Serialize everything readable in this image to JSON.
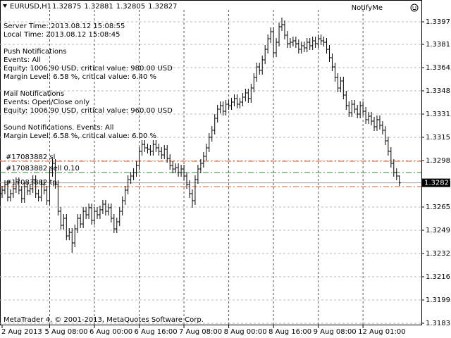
{
  "chart_data": {
    "type": "ohlc",
    "symbol": "EURUSD,H1",
    "indicator": "NotifyMe",
    "copyright": "MetaTrader 4, © 2001-2013, MetaQuotes Software Corp.",
    "info": [
      [
        "Server Time: 2013.08.12 15:08:55",
        "Local Time: 2013.08.12 15:08:45"
      ],
      [
        "Push Notifications",
        "Events: All",
        "Equity: 1006.90 USD, critical value: 980.00 USD",
        "Margin Level: 6.58 %, critical value: 6.40 %"
      ],
      [
        "Mail Notifications",
        "Events: Open/Close only",
        "Equity: 1006.90 USD, critical value: 960.00 USD"
      ],
      [
        "Sound Notifications. Events: All",
        "Margin Level: 6.58 %, critical value: 6.00 %"
      ]
    ],
    "levels": [
      {
        "label": "#17083882 sl",
        "value": 1.3298,
        "color": "#e0601a"
      },
      {
        "label": "#17083882 sell 0.10",
        "value": 1.329,
        "color": "#2e8b3a"
      },
      {
        "label": "#17083882 tp",
        "value": 1.328,
        "color": "#e0601a"
      }
    ],
    "color": "#000000",
    "grid": true,
    "ylim": [
      1.31815,
      1.34055
    ],
    "yticks": [
      1.3397,
      1.3381,
      1.33645,
      1.3348,
      1.33315,
      1.3315,
      1.32985,
      1.32655,
      1.3249,
      1.32325,
      1.3216,
      1.31995,
      1.3183
    ],
    "categories": [
      "2 Aug 2013",
      null,
      null,
      null,
      null,
      null,
      null,
      null,
      null,
      null,
      null,
      null,
      null,
      null,
      null,
      null,
      null,
      "5 Aug 08:00",
      null,
      null,
      null,
      null,
      null,
      null,
      null,
      null,
      null,
      null,
      null,
      null,
      null,
      null,
      null,
      "6 Aug 00:00",
      null,
      null,
      null,
      null,
      null,
      null,
      null,
      null,
      null,
      null,
      null,
      null,
      null,
      null,
      null,
      "6 Aug 16:00",
      null,
      null,
      null,
      null,
      null,
      null,
      null,
      null,
      null,
      null,
      null,
      null,
      null,
      null,
      null,
      "7 Aug 08:00",
      null,
      null,
      null,
      null,
      null,
      null,
      null,
      null,
      null,
      null,
      null,
      null,
      null,
      null,
      null,
      "8 Aug 00:00",
      null,
      null,
      null,
      null,
      null,
      null,
      null,
      null,
      null,
      null,
      null,
      null,
      null,
      null,
      null,
      "8 Aug 16:00",
      null,
      null,
      null,
      null,
      null,
      null,
      null,
      null,
      null,
      null,
      null,
      null,
      null,
      null,
      null,
      "9 Aug 08:00",
      null,
      null,
      null,
      null,
      null,
      null,
      null,
      null,
      null,
      null,
      null,
      null,
      null,
      null,
      null,
      "12 Aug 01:00",
      null,
      null,
      null,
      null,
      null,
      null,
      null,
      null,
      null,
      null,
      null,
      null,
      null
    ],
    "open": [
      1.3275,
      1.32775,
      1.32815,
      1.32725,
      1.3275,
      1.32785,
      1.32835,
      1.32775,
      1.32715,
      1.328,
      1.3277,
      1.32785,
      1.3285,
      1.3275,
      1.32725,
      1.32815,
      1.32775,
      1.327,
      1.329,
      1.32965,
      1.32815,
      1.32625,
      1.32525,
      1.32575,
      1.3245,
      1.32475,
      1.324,
      1.325,
      1.32575,
      1.32535,
      1.32625,
      1.326,
      1.3265,
      1.3256,
      1.32625,
      1.326,
      1.32635,
      1.32675,
      1.32625,
      1.3265,
      1.32575,
      1.325,
      1.3255,
      1.32625,
      1.327,
      1.32775,
      1.3285,
      1.32875,
      1.329,
      1.3295,
      1.3305,
      1.331,
      1.33075,
      1.33065,
      1.3305,
      1.331,
      1.33075,
      1.3305,
      1.33025,
      1.33065,
      1.33,
      1.3295,
      1.32925,
      1.32935,
      1.329,
      1.32925,
      1.32875,
      1.32815,
      1.3275,
      1.327,
      1.3285,
      1.32925,
      1.32965,
      1.33015,
      1.33075,
      1.3315,
      1.332,
      1.33285,
      1.3335,
      1.33375,
      1.33335,
      1.33385,
      1.33375,
      1.334,
      1.33425,
      1.33385,
      1.334,
      1.33435,
      1.33465,
      1.33425,
      1.335,
      1.33575,
      1.3365,
      1.33625,
      1.337,
      1.33775,
      1.3385,
      1.339,
      1.3375,
      1.33825,
      1.33935,
      1.3395,
      1.33875,
      1.33815,
      1.33825,
      1.33835,
      1.33815,
      1.33775,
      1.338,
      1.33785,
      1.33825,
      1.338,
      1.33835,
      1.33815,
      1.3385,
      1.33835,
      1.33825,
      1.33775,
      1.33715,
      1.3365,
      1.33575,
      1.335,
      1.3355,
      1.3345,
      1.33375,
      1.33325,
      1.33385,
      1.3335,
      1.33315,
      1.33375,
      1.33335,
      1.33275,
      1.333,
      1.33265,
      1.33225,
      1.33275,
      1.33235,
      1.332,
      1.33125,
      1.3305,
      1.32965,
      1.329,
      1.32875
    ],
    "high": [
      1.32805,
      1.32845,
      1.32845,
      1.3278,
      1.32815,
      1.32865,
      1.32865,
      1.32805,
      1.3283,
      1.3283,
      1.32815,
      1.3288,
      1.3288,
      1.3278,
      1.32845,
      1.32845,
      1.32805,
      1.3293,
      1.32995,
      1.32995,
      1.32845,
      1.32655,
      1.32605,
      1.32605,
      1.32505,
      1.32505,
      1.3253,
      1.32605,
      1.32605,
      1.32655,
      1.32655,
      1.3268,
      1.3268,
      1.32655,
      1.32655,
      1.32665,
      1.32705,
      1.32705,
      1.3268,
      1.3268,
      1.32605,
      1.3258,
      1.32655,
      1.3273,
      1.32805,
      1.3288,
      1.32905,
      1.3293,
      1.3298,
      1.3308,
      1.3313,
      1.3313,
      1.33105,
      1.33095,
      1.3313,
      1.3313,
      1.33105,
      1.3308,
      1.33095,
      1.33095,
      1.3303,
      1.3298,
      1.32965,
      1.32965,
      1.32955,
      1.32955,
      1.32905,
      1.32845,
      1.3278,
      1.3288,
      1.32955,
      1.32995,
      1.33045,
      1.33105,
      1.3318,
      1.3323,
      1.33315,
      1.3338,
      1.33405,
      1.33405,
      1.33415,
      1.33415,
      1.3343,
      1.33455,
      1.33455,
      1.3343,
      1.33465,
      1.33495,
      1.33495,
      1.3353,
      1.33605,
      1.3368,
      1.3368,
      1.3373,
      1.33805,
      1.3388,
      1.3393,
      1.3393,
      1.33855,
      1.33965,
      1.34,
      1.3398,
      1.33905,
      1.33855,
      1.33865,
      1.33865,
      1.33845,
      1.3383,
      1.3383,
      1.33855,
      1.33855,
      1.33865,
      1.33865,
      1.3388,
      1.3388,
      1.33865,
      1.33855,
      1.33805,
      1.33745,
      1.3368,
      1.33605,
      1.3358,
      1.3358,
      1.3348,
      1.33405,
      1.33415,
      1.33415,
      1.3338,
      1.33405,
      1.33405,
      1.33365,
      1.3333,
      1.3333,
      1.33295,
      1.33305,
      1.33305,
      1.33265,
      1.3323,
      1.33155,
      1.3308,
      1.32995,
      1.3293,
      1.32881
    ],
    "low": [
      1.3272,
      1.32745,
      1.32695,
      1.32695,
      1.3272,
      1.32755,
      1.32745,
      1.32685,
      1.32685,
      1.3274,
      1.3274,
      1.32755,
      1.3272,
      1.32695,
      1.32695,
      1.32745,
      1.3267,
      1.3267,
      1.3287,
      1.32785,
      1.32595,
      1.32495,
      1.32495,
      1.3242,
      1.3242,
      1.3233,
      1.3237,
      1.3247,
      1.32505,
      1.32505,
      1.3257,
      1.3257,
      1.3253,
      1.3253,
      1.3257,
      1.3257,
      1.32605,
      1.32595,
      1.32595,
      1.32545,
      1.3247,
      1.3247,
      1.3252,
      1.32595,
      1.3267,
      1.32745,
      1.3282,
      1.32845,
      1.3287,
      1.3292,
      1.3302,
      1.33045,
      1.33035,
      1.3302,
      1.3302,
      1.33045,
      1.3302,
      1.32995,
      1.32995,
      1.3297,
      1.3292,
      1.32895,
      1.32895,
      1.3287,
      1.3287,
      1.32845,
      1.32785,
      1.3272,
      1.3265,
      1.3267,
      1.3282,
      1.32895,
      1.32935,
      1.32985,
      1.33045,
      1.3312,
      1.3317,
      1.33255,
      1.3332,
      1.33305,
      1.33305,
      1.33345,
      1.33345,
      1.3337,
      1.33355,
      1.33355,
      1.3337,
      1.33405,
      1.33395,
      1.33395,
      1.3347,
      1.33545,
      1.33595,
      1.33595,
      1.3367,
      1.33745,
      1.3382,
      1.3372,
      1.3372,
      1.33795,
      1.33905,
      1.33845,
      1.33785,
      1.33785,
      1.33795,
      1.33785,
      1.33745,
      1.33745,
      1.33755,
      1.33755,
      1.3377,
      1.3377,
      1.33785,
      1.33785,
      1.33805,
      1.33795,
      1.33745,
      1.33685,
      1.3362,
      1.33545,
      1.3347,
      1.3347,
      1.3342,
      1.33345,
      1.33295,
      1.33295,
      1.3332,
      1.33285,
      1.33285,
      1.33305,
      1.33245,
      1.33245,
      1.33235,
      1.33195,
      1.33195,
      1.33205,
      1.3317,
      1.33095,
      1.3302,
      1.32935,
      1.3287,
      1.32845,
      1.32805
    ],
    "close": [
      1.32775,
      1.32815,
      1.32725,
      1.3275,
      1.32785,
      1.32835,
      1.32775,
      1.32715,
      1.328,
      1.3277,
      1.32785,
      1.3285,
      1.3275,
      1.32725,
      1.32815,
      1.32775,
      1.327,
      1.329,
      1.32965,
      1.32815,
      1.32625,
      1.32525,
      1.32575,
      1.3245,
      1.32475,
      1.324,
      1.325,
      1.32575,
      1.32535,
      1.32625,
      1.326,
      1.3265,
      1.3256,
      1.32625,
      1.326,
      1.32635,
      1.32675,
      1.32625,
      1.3265,
      1.32575,
      1.325,
      1.3255,
      1.32625,
      1.327,
      1.32775,
      1.3285,
      1.32875,
      1.329,
      1.3295,
      1.3305,
      1.331,
      1.33075,
      1.33065,
      1.3305,
      1.331,
      1.33075,
      1.3305,
      1.33025,
      1.33065,
      1.33,
      1.3295,
      1.32925,
      1.32935,
      1.329,
      1.32925,
      1.32875,
      1.32815,
      1.3275,
      1.327,
      1.3285,
      1.32925,
      1.32965,
      1.33015,
      1.33075,
      1.3315,
      1.332,
      1.33285,
      1.3335,
      1.33375,
      1.33335,
      1.33385,
      1.33375,
      1.334,
      1.33425,
      1.33385,
      1.334,
      1.33435,
      1.33465,
      1.33425,
      1.335,
      1.33575,
      1.3365,
      1.33625,
      1.337,
      1.33775,
      1.3385,
      1.339,
      1.3375,
      1.33825,
      1.33935,
      1.3395,
      1.33875,
      1.33815,
      1.33825,
      1.33835,
      1.33815,
      1.33775,
      1.338,
      1.33785,
      1.33825,
      1.338,
      1.33835,
      1.33815,
      1.3385,
      1.33835,
      1.33825,
      1.33775,
      1.33715,
      1.3365,
      1.33575,
      1.335,
      1.3355,
      1.3345,
      1.33375,
      1.33325,
      1.33385,
      1.3335,
      1.33315,
      1.33375,
      1.33335,
      1.33275,
      1.333,
      1.33265,
      1.33225,
      1.33275,
      1.33235,
      1.332,
      1.33125,
      1.3305,
      1.32965,
      1.329,
      1.32875,
      1.32827
    ]
  }
}
